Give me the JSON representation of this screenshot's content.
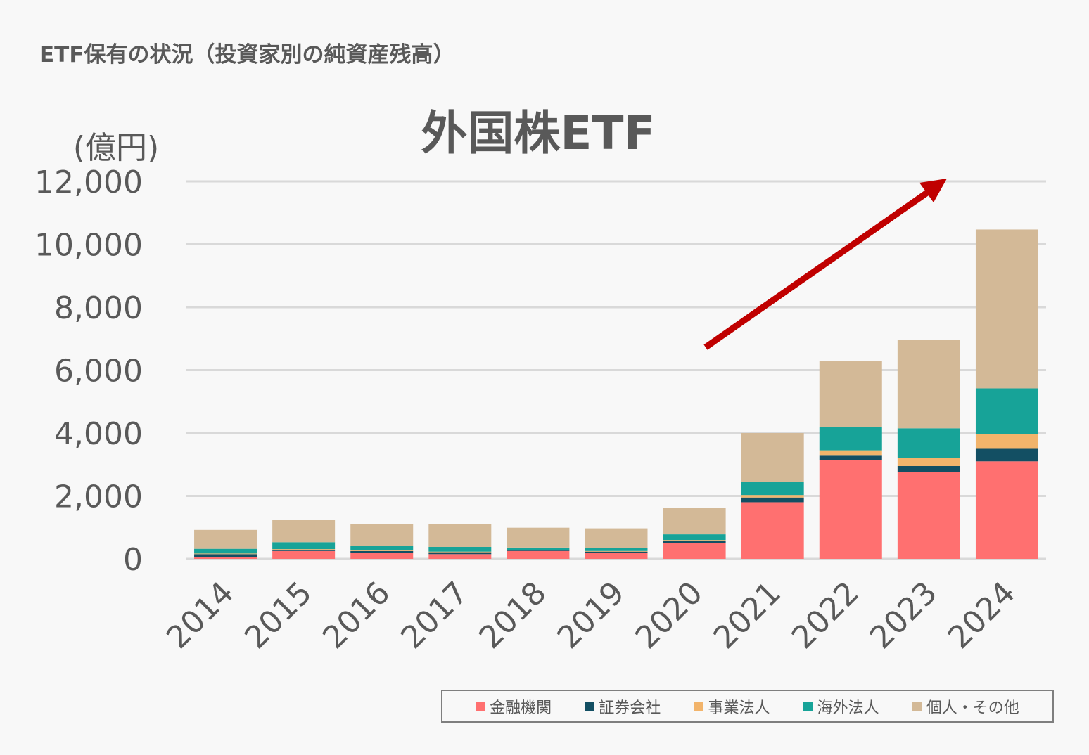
{
  "page_heading": "ETF保有の状況（投資家別の純資産残高）",
  "chart_data": {
    "type": "bar",
    "stacked": true,
    "title": "外国株ETF",
    "ylabel": "(億円)",
    "xlabel": "",
    "ylim": [
      0,
      12000
    ],
    "yticks": [
      "0",
      "2,000",
      "4,000",
      "6,000",
      "8,000",
      "10,000",
      "12,000"
    ],
    "grid": true,
    "legend_position": "bottom-right",
    "annotation": "upward-trend-arrow",
    "categories": [
      "2014",
      "2015",
      "2016",
      "2017",
      "2018",
      "2019",
      "2020",
      "2021",
      "2022",
      "2023",
      "2024"
    ],
    "series": [
      {
        "name": "金融機関",
        "color": "#ff7070",
        "values": [
          50,
          250,
          200,
          150,
          250,
          200,
          500,
          1800,
          3150,
          2750,
          3100
        ]
      },
      {
        "name": "証券会社",
        "color": "#134f63",
        "values": [
          100,
          40,
          50,
          60,
          20,
          30,
          70,
          150,
          150,
          200,
          420
        ]
      },
      {
        "name": "事業法人",
        "color": "#f2b46b",
        "values": [
          20,
          20,
          20,
          20,
          20,
          20,
          30,
          80,
          150,
          250,
          450
        ]
      },
      {
        "name": "海外法人",
        "color": "#17a398",
        "values": [
          150,
          220,
          150,
          150,
          70,
          100,
          180,
          420,
          750,
          950,
          1450
        ]
      },
      {
        "name": "個人・その他",
        "color": "#d3b997",
        "values": [
          600,
          720,
          680,
          720,
          630,
          620,
          840,
          1550,
          2100,
          2800,
          5050
        ]
      }
    ]
  }
}
